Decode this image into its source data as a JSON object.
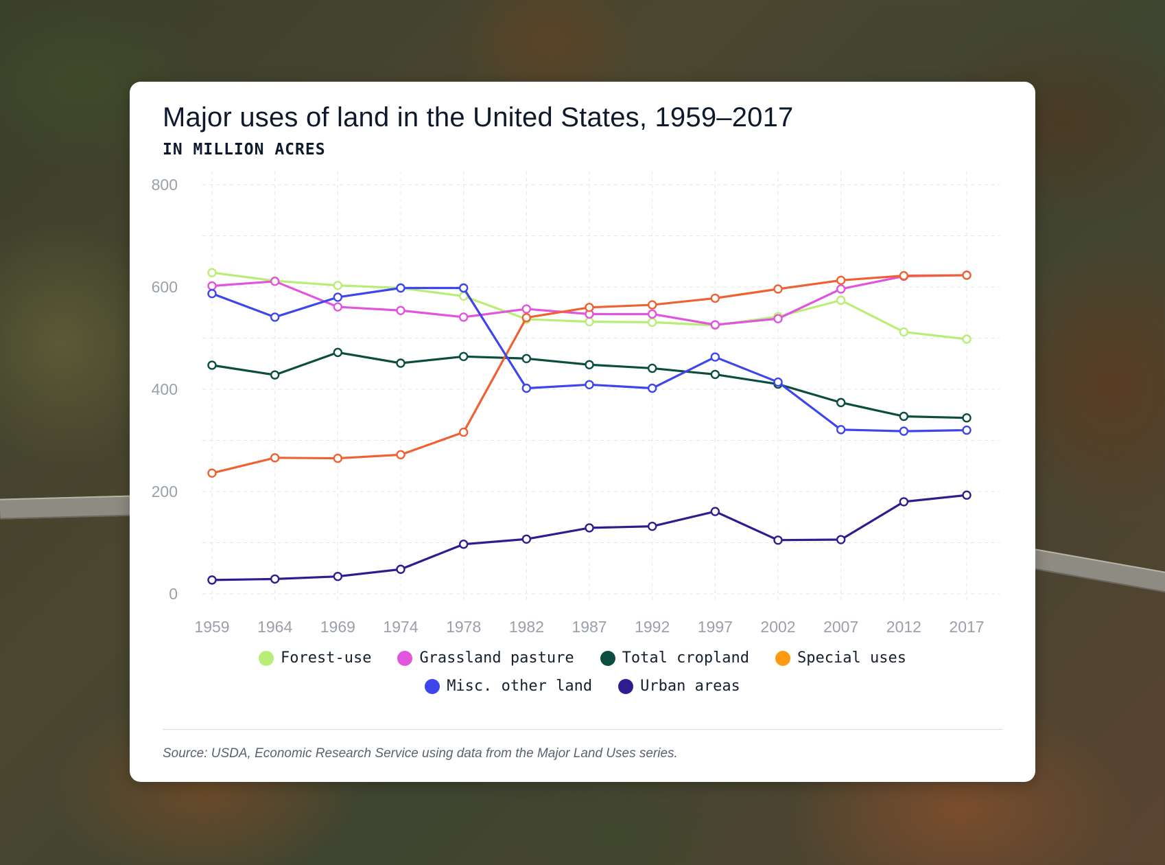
{
  "title": "Major uses of land in the United States, 1959–2017",
  "subtitle": "IN MILLION ACRES",
  "source": "Source: USDA, Economic Research Service using data from the Major Land Uses series.",
  "chart_data": {
    "type": "line",
    "title": "Major uses of land in the United States, 1959–2017",
    "subtitle": "IN MILLION ACRES",
    "xlabel": "",
    "ylabel": "",
    "ylim": [
      0,
      800
    ],
    "yticks": [
      0,
      200,
      400,
      600,
      800
    ],
    "grid": true,
    "legend_position": "bottom",
    "categories": [
      "1959",
      "1964",
      "1969",
      "1974",
      "1978",
      "1982",
      "1987",
      "1992",
      "1997",
      "2002",
      "2007",
      "2012",
      "2017"
    ],
    "series": [
      {
        "name": "Forest-use",
        "color": "#b8ee78",
        "values": [
          628,
          612,
          603,
          598,
          582,
          537,
          532,
          531,
          525,
          542,
          574,
          512,
          498
        ]
      },
      {
        "name": "Grassland pasture",
        "color": "#e055dc",
        "values": [
          602,
          611,
          561,
          554,
          541,
          557,
          547,
          547,
          526,
          538,
          596,
          621,
          623
        ]
      },
      {
        "name": "Total cropland",
        "color": "#0b4d3e",
        "values": [
          447,
          428,
          472,
          451,
          464,
          460,
          448,
          441,
          429,
          410,
          374,
          347,
          344
        ]
      },
      {
        "name": "Special uses",
        "color": "#ef6132",
        "values": [
          236,
          266,
          265,
          272,
          316,
          540,
          560,
          565,
          578,
          596,
          613,
          622,
          623
        ]
      },
      {
        "name": "Misc. other land",
        "color": "#3d46ea",
        "values": [
          587,
          541,
          580,
          598,
          598,
          402,
          409,
          402,
          463,
          414,
          321,
          318,
          320
        ]
      },
      {
        "name": "Urban areas",
        "color": "#301c8e",
        "values": [
          27,
          29,
          34,
          48,
          97,
          107,
          129,
          132,
          161,
          105,
          106,
          180,
          193
        ]
      }
    ]
  },
  "legend": {
    "row1": [
      {
        "name": "Forest-use",
        "color": "#b8ee78"
      },
      {
        "name": "Grassland pasture",
        "color": "#e055dc"
      },
      {
        "name": "Total cropland",
        "color": "#0b4d3e"
      },
      {
        "name": "Special uses",
        "color": "#fd9a12"
      }
    ],
    "row2": [
      {
        "name": "Misc. other land",
        "color": "#3d46ea"
      },
      {
        "name": "Urban areas",
        "color": "#301c8e"
      }
    ]
  }
}
